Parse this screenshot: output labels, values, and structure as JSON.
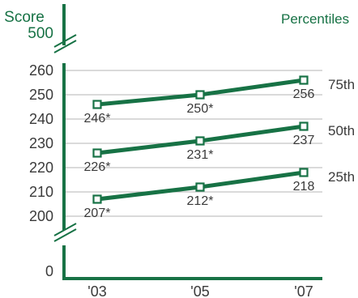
{
  "chart_data": {
    "type": "line",
    "y_axis_title": "Score",
    "y_axis_max_label": "500",
    "y_axis_min_label": "0",
    "legend_title": "Percentiles",
    "categories": [
      "'03",
      "'05",
      "'07"
    ],
    "y_ticks": [
      "260",
      "250",
      "240",
      "230",
      "220",
      "210",
      "200"
    ],
    "ylim": [
      200,
      260
    ],
    "axis_break": true,
    "series": [
      {
        "name": "75th",
        "values": [
          246,
          250,
          256
        ],
        "labels": [
          "246*",
          "250*",
          "256"
        ]
      },
      {
        "name": "50th",
        "values": [
          226,
          231,
          237
        ],
        "labels": [
          "226*",
          "231*",
          "237"
        ]
      },
      {
        "name": "25th",
        "values": [
          207,
          212,
          218
        ],
        "labels": [
          "207*",
          "212*",
          "218"
        ]
      }
    ],
    "colors": {
      "line": "#177245",
      "axis": "#177245",
      "text": "#3a3a3a",
      "grid": "#b5b5b5"
    }
  }
}
